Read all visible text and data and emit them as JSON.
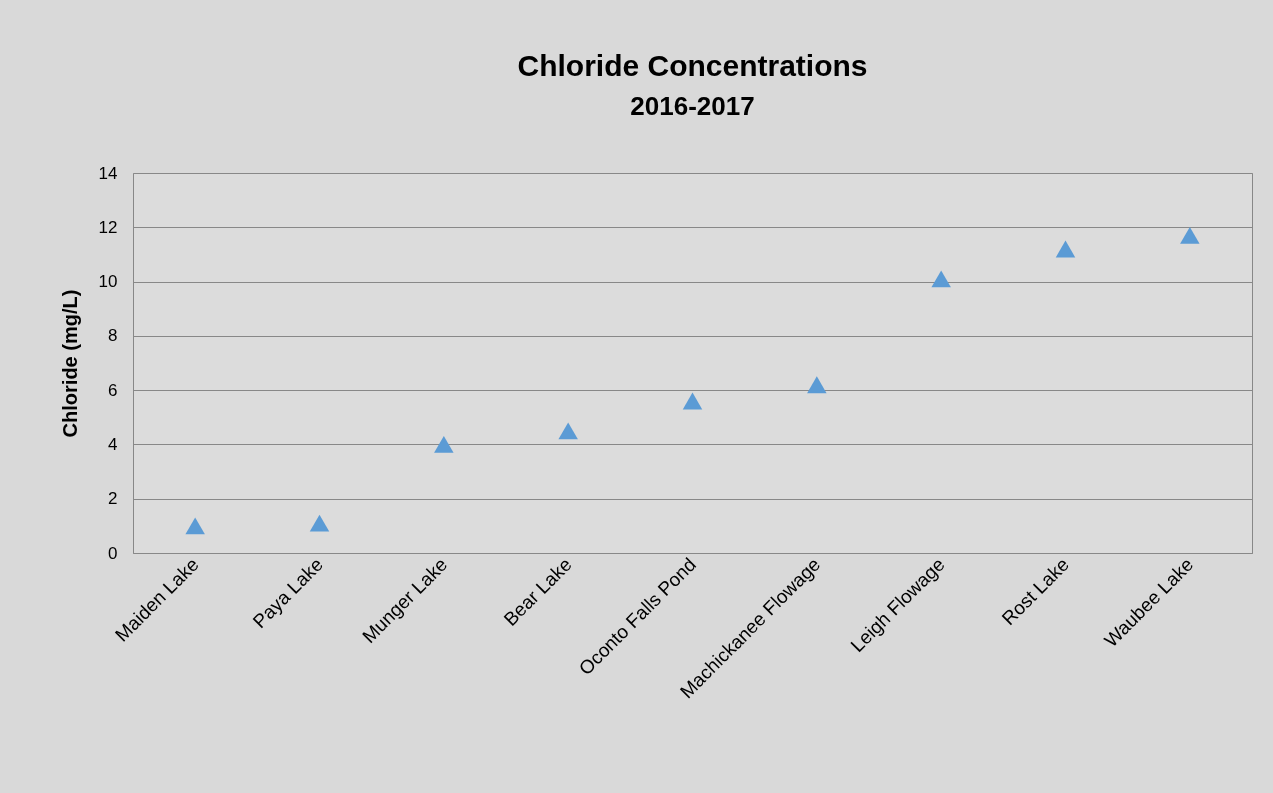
{
  "chart_data": {
    "type": "scatter",
    "title": "Chloride Concentrations",
    "subtitle": "2016-2017",
    "ylabel": "Chloride (mg/L)",
    "categories": [
      "Maiden Lake",
      "Paya Lake",
      "Munger Lake",
      "Bear Lake",
      "Oconto Falls Pond",
      "Machickanee Flowage",
      "Leigh Flowage",
      "Rost Lake",
      "Waubee Lake"
    ],
    "series": [
      {
        "color": "#5b9bd5",
        "values": [
          1.0,
          1.1,
          4.0,
          4.5,
          5.6,
          6.2,
          10.1,
          11.2,
          11.7
        ]
      }
    ],
    "ylim": [
      0,
      14
    ],
    "yticks": [
      0,
      2,
      4,
      6,
      8,
      10,
      12,
      14
    ],
    "grid": "y",
    "marker": "triangle"
  }
}
